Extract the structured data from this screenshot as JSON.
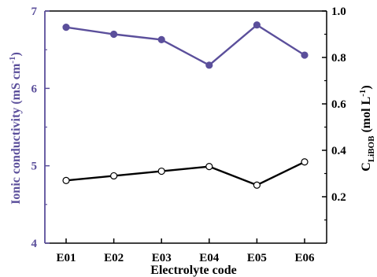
{
  "chart_data": {
    "type": "line",
    "categories": [
      "E01",
      "E02",
      "E03",
      "E04",
      "E05",
      "E06"
    ],
    "xlabel": "Electrolyte code",
    "ylabel_left": "Ionic conductivity (mS cm",
    "ylabel_left_sup": "-1",
    "ylabel_left_end": ")",
    "ylabel_right_main": "C",
    "ylabel_right_sub": "LiBOB",
    "ylabel_right_mid": " (mol L",
    "ylabel_right_sup": "-1",
    "ylabel_right_end": ")",
    "y_left": {
      "min": 4,
      "max": 7,
      "ticks": [
        "4",
        "5",
        "6",
        "7"
      ]
    },
    "y_right": {
      "min": 0,
      "max": 1.0,
      "ticks": [
        "0.2",
        "0.4",
        "0.6",
        "0.8",
        "1.0"
      ]
    },
    "grid": false,
    "series": [
      {
        "axis": "left",
        "color": "#5b4f9b",
        "marker": "filled-circle",
        "values": [
          6.79,
          6.7,
          6.63,
          6.3,
          6.82,
          6.43
        ]
      },
      {
        "axis": "right",
        "color": "#000000",
        "marker": "open-circle",
        "values": [
          0.27,
          0.29,
          0.31,
          0.33,
          0.25,
          0.35
        ]
      }
    ]
  }
}
